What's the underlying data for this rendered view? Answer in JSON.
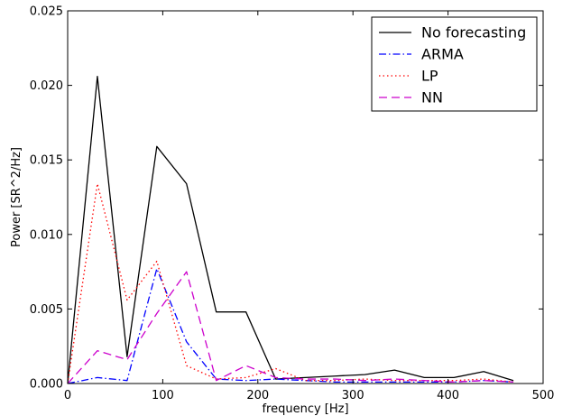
{
  "chart_data": {
    "type": "line",
    "title": "",
    "xlabel": "frequency [Hz]",
    "ylabel": "Power [SR^2/Hz]",
    "xlim": [
      0,
      500
    ],
    "ylim": [
      0,
      0.025
    ],
    "x_ticks": [
      0,
      100,
      200,
      300,
      400,
      500
    ],
    "x_tick_labels": [
      "0",
      "100",
      "200",
      "300",
      "400",
      "500"
    ],
    "y_ticks": [
      0.0,
      0.005,
      0.01,
      0.015,
      0.02,
      0.025
    ],
    "y_tick_labels": [
      "0.000",
      "0.005",
      "0.010",
      "0.015",
      "0.020",
      "0.025"
    ],
    "grid": false,
    "legend_position": "top-right",
    "x": [
      0,
      31.25,
      62.5,
      93.75,
      125,
      156.25,
      187.5,
      218.75,
      250,
      281.25,
      312.5,
      343.75,
      375,
      406.25,
      437.5,
      468.75
    ],
    "series": [
      {
        "name": "No forecasting",
        "color": "#000000",
        "dash": "solid",
        "values": [
          0.0,
          0.0206,
          0.0018,
          0.0159,
          0.0134,
          0.0048,
          0.0048,
          0.0003,
          0.0004,
          0.0005,
          0.0006,
          0.0009,
          0.0004,
          0.0004,
          0.0008,
          0.0002
        ]
      },
      {
        "name": "ARMA",
        "color": "#0000ff",
        "dash": "dashdot",
        "values": [
          0.0,
          0.0004,
          0.0002,
          0.0077,
          0.0028,
          0.0003,
          0.0002,
          0.0003,
          0.0002,
          0.0001,
          0.0001,
          0.0001,
          0.0001,
          0.0001,
          0.0002,
          0.0001
        ]
      },
      {
        "name": "LP",
        "color": "#ff0000",
        "dash": "dotted",
        "values": [
          0.0,
          0.0134,
          0.0056,
          0.0082,
          0.0012,
          0.0003,
          0.0004,
          0.001,
          0.0002,
          0.0002,
          0.0003,
          0.0002,
          0.0002,
          0.0002,
          0.0003,
          0.0001
        ]
      },
      {
        "name": "NN",
        "color": "#cc00cc",
        "dash": "dashed",
        "values": [
          0.0,
          0.0022,
          0.0016,
          0.0047,
          0.0075,
          0.0002,
          0.0012,
          0.0004,
          0.0003,
          0.0003,
          0.0002,
          0.0003,
          0.0002,
          0.0001,
          0.0002,
          0.0001
        ]
      }
    ]
  }
}
